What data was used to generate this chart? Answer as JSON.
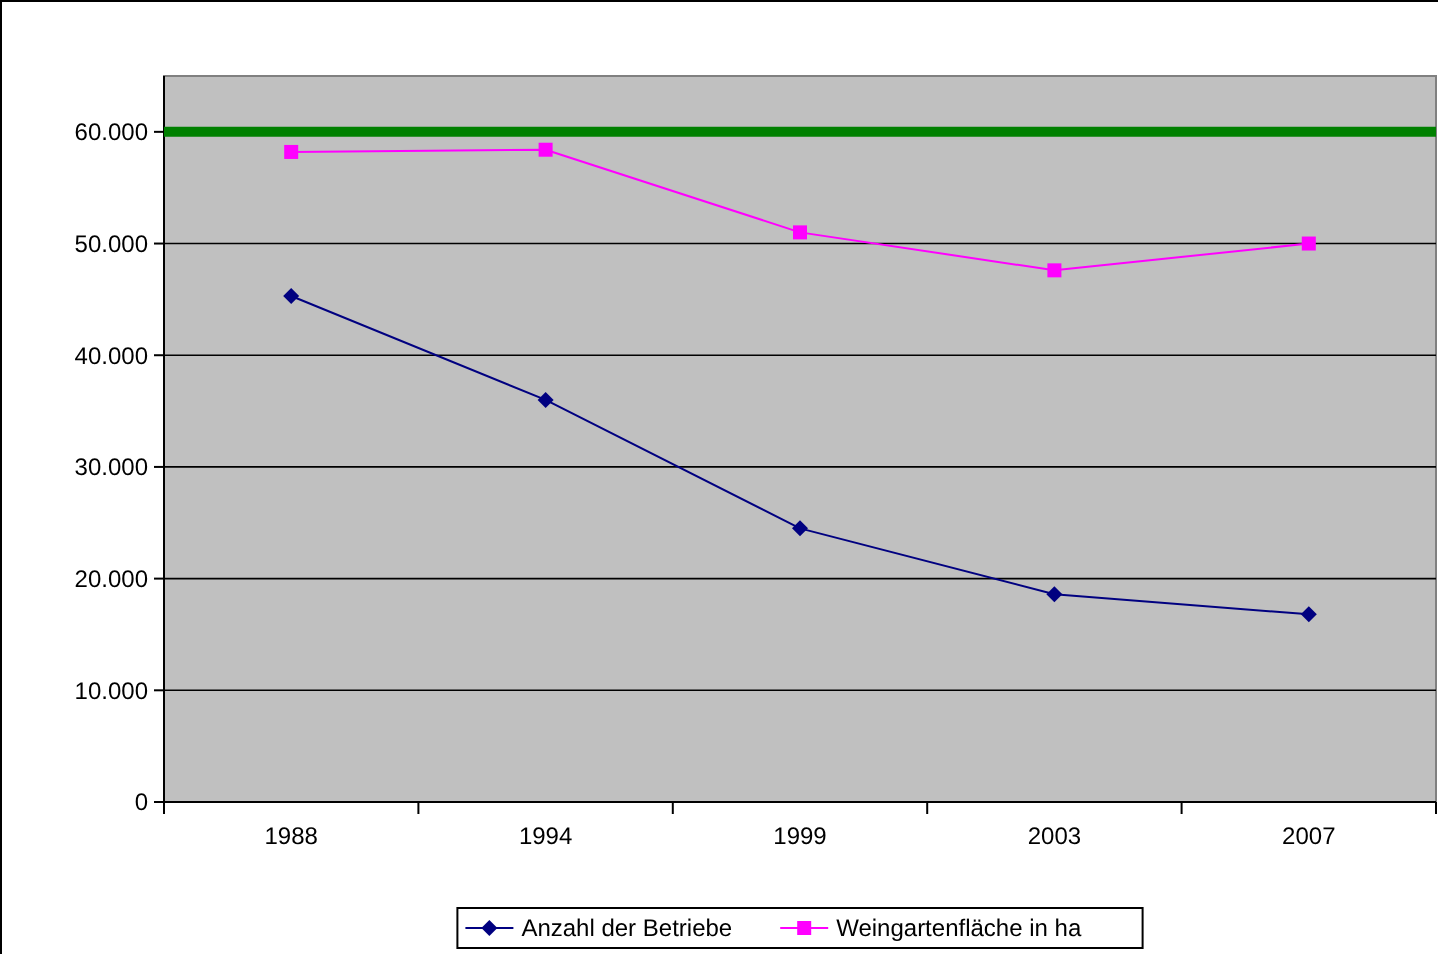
{
  "chart_data": {
    "type": "line",
    "categories": [
      "1988",
      "1994",
      "1999",
      "2003",
      "2007"
    ],
    "series": [
      {
        "name": "Anzahl der Betriebe",
        "color": "#000080",
        "marker": "diamond",
        "values": [
          45300,
          36000,
          24500,
          18600,
          16800
        ]
      },
      {
        "name": "Weingartenfläche in ha",
        "color": "#ff00ff",
        "marker": "square",
        "values": [
          58200,
          58400,
          51000,
          47600,
          50000
        ]
      }
    ],
    "ylim": [
      0,
      65000
    ],
    "yticks": [
      0,
      {
        "value": 10000,
        "label": "10.000"
      },
      {
        "value": 20000,
        "label": "20.000"
      },
      {
        "value": 30000,
        "label": "30.000"
      },
      {
        "value": 40000,
        "label": "40.000"
      },
      {
        "value": 50000,
        "label": "50.000"
      },
      {
        "value": 60000,
        "label": "60.000"
      }
    ],
    "ref_lines": [
      {
        "axis": "y",
        "value": 60000,
        "label": null,
        "color": "#008000"
      }
    ],
    "grid": "y",
    "legend": "bottom",
    "line_style": "solid"
  }
}
